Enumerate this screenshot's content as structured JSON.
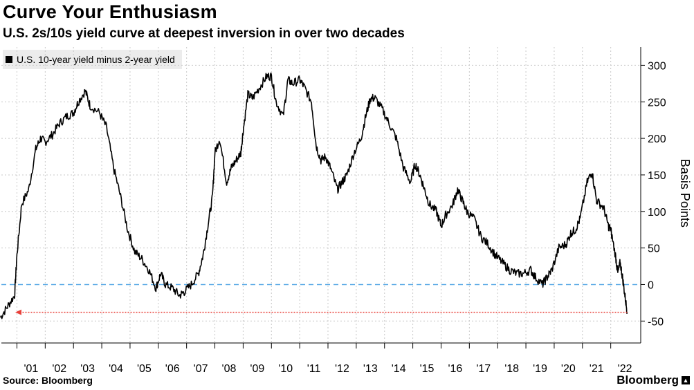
{
  "header": {
    "title": "Curve Your Enthusiasm",
    "subtitle": "U.S. 2s/10s yield curve at deepest inversion in over two decades"
  },
  "footer": {
    "source": "Source: Bloomberg",
    "brand": "Bloomberg"
  },
  "colors": {
    "line": "#000000",
    "zero_line": "#5aa9e6",
    "arrow": "#e8403a",
    "grid": "#c8c8c8",
    "legend_bg": "#ececec"
  },
  "chart_data": {
    "type": "line",
    "title": "Curve Your Enthusiasm",
    "subtitle": "U.S. 2s/10s yield curve at deepest inversion in over two decades",
    "ylabel": "Basis Points",
    "xlabel": "",
    "ylim": [
      -80,
      325
    ],
    "yticks": [
      300,
      250,
      200,
      150,
      100,
      50,
      0,
      -50
    ],
    "xticks": [
      "'01",
      "'02",
      "'03",
      "'04",
      "'05",
      "'06",
      "'07",
      "'08",
      "'09",
      "'10",
      "'11",
      "'12",
      "'13",
      "'14",
      "'15",
      "'16",
      "'17",
      "'18",
      "'19",
      "'20",
      "'21",
      "'22"
    ],
    "grid": true,
    "legend_position": "top-left",
    "reference_lines": [
      {
        "y": 0,
        "style": "dashed"
      }
    ],
    "series": [
      {
        "name": "U.S. 10-year yield minus 2-year yield",
        "x": [
          "2000-06",
          "2000-09",
          "2000-12",
          "2001-01",
          "2001-03",
          "2001-06",
          "2001-09",
          "2001-11",
          "2002-01",
          "2002-04",
          "2002-07",
          "2002-10",
          "2003-01",
          "2003-03",
          "2003-06",
          "2003-08",
          "2003-12",
          "2004-03",
          "2004-06",
          "2004-09",
          "2004-12",
          "2005-03",
          "2005-06",
          "2005-09",
          "2005-12",
          "2006-02",
          "2006-04",
          "2006-07",
          "2006-10",
          "2006-12",
          "2007-03",
          "2007-06",
          "2007-08",
          "2007-10",
          "2007-12",
          "2008-01",
          "2008-03",
          "2008-06",
          "2008-08",
          "2008-10",
          "2008-12",
          "2009-01",
          "2009-03",
          "2009-05",
          "2009-08",
          "2009-11",
          "2010-01",
          "2010-03",
          "2010-06",
          "2010-08",
          "2010-10",
          "2011-01",
          "2011-03",
          "2011-06",
          "2011-08",
          "2011-10",
          "2011-12",
          "2012-02",
          "2012-05",
          "2012-07",
          "2012-09",
          "2012-12",
          "2013-03",
          "2013-05",
          "2013-07",
          "2013-09",
          "2013-12",
          "2014-03",
          "2014-06",
          "2014-09",
          "2014-12",
          "2015-02",
          "2015-04",
          "2015-06",
          "2015-08",
          "2015-11",
          "2016-01",
          "2016-03",
          "2016-06",
          "2016-08",
          "2016-10",
          "2016-12",
          "2017-03",
          "2017-06",
          "2017-09",
          "2017-12",
          "2018-03",
          "2018-06",
          "2018-09",
          "2018-12",
          "2019-03",
          "2019-05",
          "2019-08",
          "2019-10",
          "2019-12",
          "2020-03",
          "2020-06",
          "2020-08",
          "2020-10",
          "2020-12",
          "2021-03",
          "2021-05",
          "2021-07",
          "2021-10",
          "2021-12",
          "2022-01",
          "2022-03",
          "2022-04",
          "2022-05",
          "2022-06",
          "2022-07",
          "2022-08"
        ],
        "values": [
          -45,
          -30,
          -15,
          40,
          110,
          130,
          185,
          200,
          195,
          205,
          220,
          230,
          235,
          250,
          265,
          245,
          235,
          215,
          160,
          120,
          75,
          45,
          35,
          20,
          -5,
          15,
          0,
          -5,
          -15,
          -10,
          0,
          15,
          40,
          80,
          120,
          180,
          200,
          140,
          160,
          170,
          180,
          210,
          260,
          255,
          270,
          285,
          285,
          250,
          230,
          280,
          275,
          280,
          270,
          250,
          190,
          170,
          175,
          160,
          130,
          140,
          150,
          180,
          200,
          230,
          255,
          255,
          240,
          220,
          200,
          160,
          140,
          165,
          150,
          130,
          110,
          100,
          80,
          95,
          110,
          130,
          115,
          100,
          90,
          65,
          55,
          40,
          30,
          20,
          15,
          15,
          20,
          10,
          0,
          10,
          20,
          50,
          55,
          70,
          75,
          90,
          140,
          155,
          115,
          105,
          80,
          75,
          40,
          15,
          30,
          10,
          -15,
          -38
        ]
      }
    ],
    "annotations": [
      {
        "type": "arrow",
        "y": -38,
        "direction": "left"
      }
    ]
  }
}
